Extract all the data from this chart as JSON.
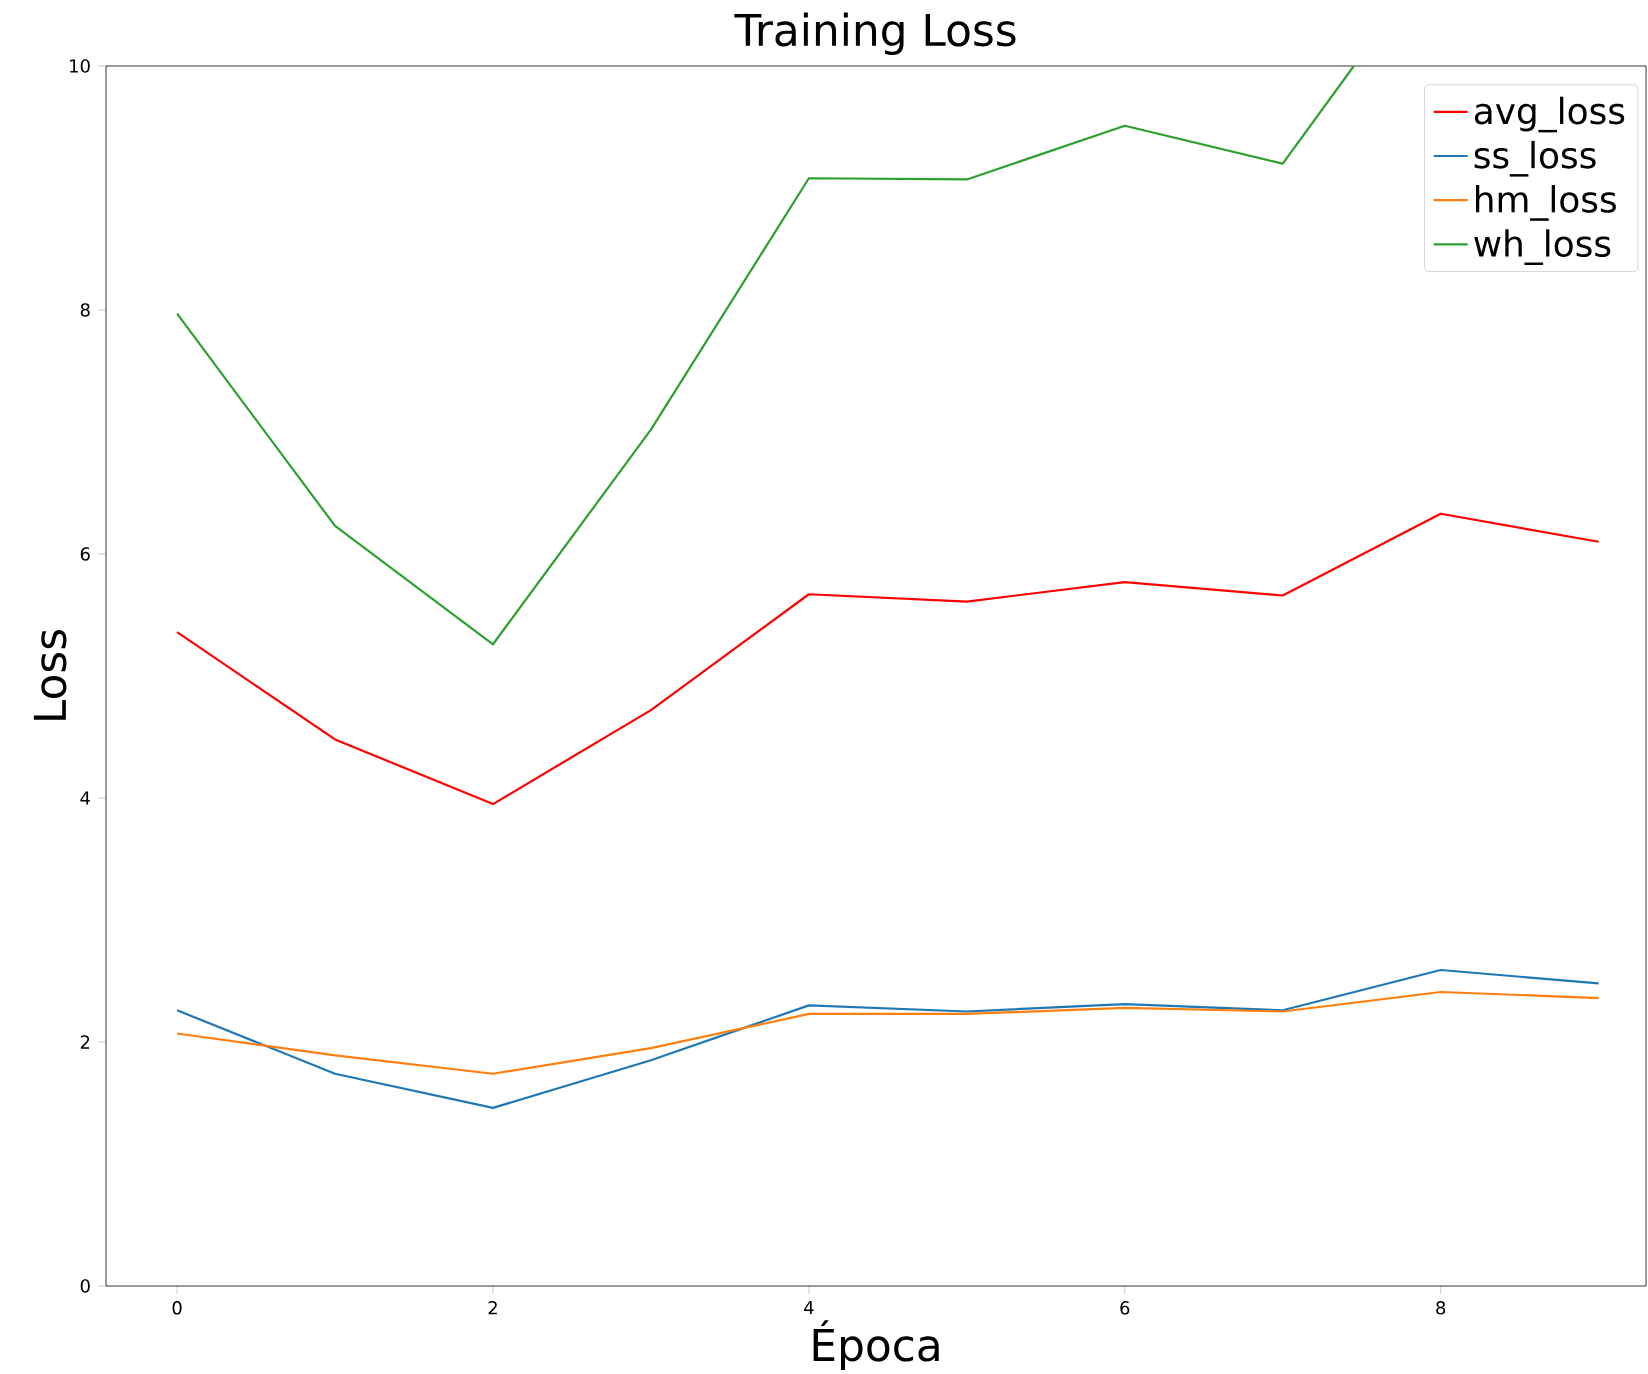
{
  "chart_data": {
    "type": "line",
    "title": "Training Loss",
    "xlabel": "Época",
    "ylabel": "Loss",
    "x": [
      0,
      1,
      2,
      3,
      4,
      5,
      6,
      7,
      8,
      9
    ],
    "series": [
      {
        "name": "avg_loss",
        "color": "#ff0000",
        "values": [
          5.36,
          4.48,
          3.95,
          4.72,
          5.67,
          5.61,
          5.77,
          5.66,
          6.33,
          6.1
        ]
      },
      {
        "name": "ss_loss",
        "color": "#1f77b4",
        "values": [
          2.26,
          1.74,
          1.46,
          1.85,
          2.3,
          2.25,
          2.31,
          2.26,
          2.59,
          2.48
        ]
      },
      {
        "name": "hm_loss",
        "color": "#ff7f0e",
        "values": [
          2.07,
          1.89,
          1.74,
          1.95,
          2.23,
          2.23,
          2.28,
          2.25,
          2.41,
          2.36
        ]
      },
      {
        "name": "wh_loss",
        "color": "#2ca02c",
        "x": [
          0,
          1,
          2,
          3,
          4,
          5,
          6,
          7,
          7.45
        ],
        "values": [
          7.97,
          6.23,
          5.26,
          7.02,
          9.08,
          9.07,
          9.51,
          9.2,
          10
        ]
      }
    ],
    "xlim": [
      -0.45,
      9.3
    ],
    "ylim": [
      0,
      10
    ],
    "xticks": [
      0,
      2,
      4,
      6,
      8
    ],
    "yticks": [
      0,
      2,
      4,
      6,
      8,
      10
    ],
    "legend": "top right"
  }
}
